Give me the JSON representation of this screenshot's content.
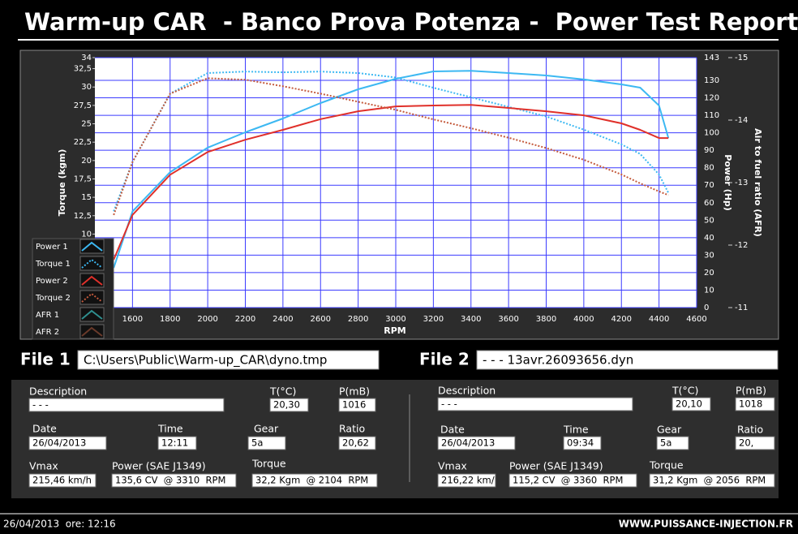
{
  "header": {
    "title": "Warm-up CAR  - Banco Prova Potenza -  Power Test Report"
  },
  "chart_data": {
    "type": "line",
    "x_label": "RPM",
    "y_label": "Torque (kgm)",
    "y2_label": "Power (Hp)",
    "y3_label": "Air to fuel ratio (AFR)",
    "xlim": [
      1400,
      4600
    ],
    "xticks": [
      1600,
      1800,
      2000,
      2200,
      2400,
      2600,
      2800,
      3000,
      3200,
      3400,
      3600,
      3800,
      4000,
      4200,
      4400,
      4600
    ],
    "ylim": [
      0,
      34
    ],
    "yticks": [
      {
        "value": 10,
        "label": "10"
      },
      {
        "value": 12.5,
        "label": "12,5"
      },
      15,
      {
        "value": 17.5,
        "label": "17,5"
      },
      20,
      {
        "value": 22.5,
        "label": "22,5"
      },
      25,
      {
        "value": 27.5,
        "label": "27,5"
      },
      30,
      {
        "value": 32.5,
        "label": "32,5"
      },
      34
    ],
    "y2lim": [
      0,
      143
    ],
    "y2ticks": [
      0,
      10,
      20,
      30,
      40,
      50,
      60,
      70,
      80,
      90,
      100,
      110,
      120,
      130,
      143
    ],
    "y3lim": [
      -11,
      -15
    ],
    "y3ticks": [
      -11,
      -12,
      -13,
      -14,
      -15
    ],
    "grid": true,
    "x": [
      1500,
      1600,
      1800,
      2000,
      2200,
      2400,
      2600,
      2800,
      3000,
      3200,
      3400,
      3600,
      3800,
      4000,
      4200,
      4300,
      4400,
      4450
    ],
    "series": [
      {
        "name": "Power 1",
        "color": "#3cb8f2",
        "axis": "y2",
        "style": "solid",
        "values": [
          22.7,
          55,
          77.5,
          91.5,
          100.3,
          108.2,
          117,
          124.9,
          130.9,
          135.1,
          135.5,
          134.2,
          132.8,
          130.5,
          127.7,
          125.8,
          115.6,
          97
        ]
      },
      {
        "name": "Torque 1",
        "color": "#3cb8f2",
        "axis": "y",
        "style": "dotted",
        "values": [
          13.1,
          19.8,
          29.1,
          31.9,
          32.1,
          32,
          32.1,
          31.9,
          31.3,
          29.9,
          28.6,
          27.3,
          26,
          24.2,
          22.2,
          20.9,
          18.1,
          15.6
        ]
      },
      {
        "name": "Power 2",
        "color": "#e0302a",
        "axis": "y2",
        "style": "solid",
        "values": [
          27.4,
          53,
          76,
          89,
          96,
          101.7,
          107.8,
          112.3,
          115.1,
          115.6,
          116,
          114.2,
          112.3,
          110,
          105.4,
          101.7,
          97,
          97
        ]
      },
      {
        "name": "Torque 2",
        "color": "#c45a3c",
        "axis": "y",
        "style": "dotted",
        "values": [
          12.6,
          19.8,
          29.1,
          31.2,
          31,
          30.1,
          29.1,
          28,
          26.9,
          25.6,
          24.4,
          23.1,
          21.7,
          20.1,
          18.1,
          16.9,
          15.8,
          15.3
        ]
      },
      {
        "name": "AFR 1",
        "color": "#2f8f8f",
        "axis": "y3",
        "style": "solid",
        "values": [
          null,
          null,
          null,
          null,
          null,
          null,
          null,
          null,
          null,
          null,
          null,
          null,
          null,
          null,
          null,
          null,
          null,
          null
        ]
      },
      {
        "name": "AFR 2",
        "color": "#6a3a2a",
        "axis": "y3",
        "style": "solid",
        "values": [
          null,
          null,
          null,
          null,
          null,
          null,
          null,
          null,
          null,
          null,
          null,
          null,
          null,
          null,
          null,
          null,
          null,
          null
        ]
      }
    ]
  },
  "files": [
    {
      "label": "File 1",
      "path": "C:\\Users\\Public\\Warm-up_CAR\\dyno.tmp",
      "fields": [
        {
          "label": "Description",
          "value": "- - -"
        },
        {
          "label": "T(°C)",
          "value": "20,30"
        },
        {
          "label": "P(mB)",
          "value": "1016"
        },
        {
          "label": "Date",
          "value": "26/04/2013"
        },
        {
          "label": "Time",
          "value": "12:11"
        },
        {
          "label": "Gear",
          "value": "5a"
        },
        {
          "label": "Ratio",
          "value": "20,62"
        },
        {
          "label": "Vmax",
          "value": "215,46 km/h"
        },
        {
          "label": "Power (SAE J1349)",
          "value": "135,6 CV  @ 3310  RPM"
        },
        {
          "label": "Torque",
          "value": "32,2 Kgm  @ 2104  RPM"
        }
      ]
    },
    {
      "label": "File 2",
      "path": "- - - 13avr.26093656.dyn",
      "fields": [
        {
          "label": "Description",
          "value": "- - -"
        },
        {
          "label": "T(°C)",
          "value": "20,10"
        },
        {
          "label": "P(mB)",
          "value": "1018"
        },
        {
          "label": "Date",
          "value": "26/04/2013"
        },
        {
          "label": "Time",
          "value": "09:34"
        },
        {
          "label": "Gear",
          "value": "5a"
        },
        {
          "label": "Ratio",
          "value": "20,"
        },
        {
          "label": "Vmax",
          "value": "216,22 km/"
        },
        {
          "label": "Power (SAE J1349)",
          "value": "115,2 CV  @ 3360  RPM"
        },
        {
          "label": "Torque",
          "value": "31,2 Kgm  @ 2056  RPM"
        }
      ]
    }
  ],
  "footer": {
    "datetime": "26/04/2013  ore: 12:16",
    "website": "WWW.PUISSANCE-INJECTION.FR"
  }
}
